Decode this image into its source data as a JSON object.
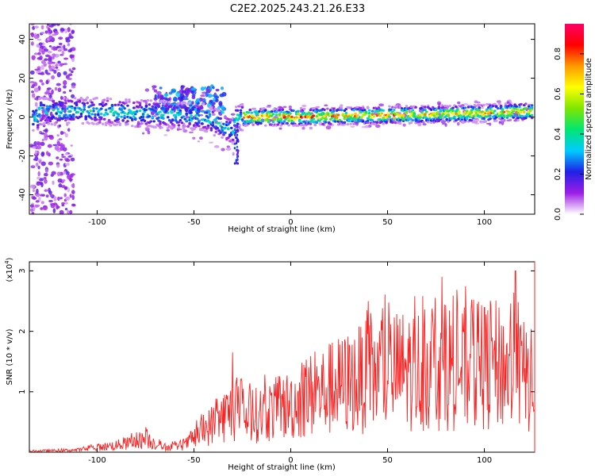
{
  "title": "C2E2.2025.243.21.26.E33",
  "chart_data": [
    {
      "type": "heatmap",
      "xlabel": "Height of straight line (km)",
      "ylabel": "Frequency (Hz)",
      "xlim": [
        -135,
        126
      ],
      "ylim": [
        -50,
        48
      ],
      "xticks": [
        -100,
        -50,
        0,
        50,
        100
      ],
      "yticks": [
        -40,
        -20,
        0,
        20,
        40
      ],
      "colorbar": {
        "label": "Normalized spectral amplitude",
        "range": [
          0,
          0.95
        ],
        "ticks": [
          "0.0",
          "0.2",
          "0.4",
          "0.6",
          "0.8"
        ],
        "colors": [
          "#ffffff",
          "#9e1ee6",
          "#2020e6",
          "#00ccff",
          "#00e673",
          "#7fe600",
          "#ffff00",
          "#ff9900",
          "#ff0000",
          "#ff0066"
        ]
      },
      "ridge": [
        {
          "x": -130,
          "freq": 3
        },
        {
          "x": -100,
          "freq": 3
        },
        {
          "x": -80,
          "freq": 2
        },
        {
          "x": -60,
          "freq": 1
        },
        {
          "x": -45,
          "freq": 0
        },
        {
          "x": -38,
          "freq": -3
        },
        {
          "x": -30,
          "freq": -8
        },
        {
          "x": -28,
          "freq": 0
        },
        {
          "x": 0,
          "freq": 0
        },
        {
          "x": 50,
          "freq": 1
        },
        {
          "x": 100,
          "freq": 2
        },
        {
          "x": 125,
          "freq": 3
        }
      ]
    },
    {
      "type": "line",
      "xlabel": "Height of straight line (km)",
      "ylabel": "SNR (10 * v/v)",
      "y_multiplier": "(x10",
      "y_multiplier_exp": "4",
      "y_multiplier_close": ")",
      "xlim": [
        -135,
        126
      ],
      "ylim": [
        0,
        3.15
      ],
      "xticks": [
        -100,
        -50,
        0,
        50,
        100
      ],
      "yticks": [
        1,
        2,
        3
      ],
      "series": [
        {
          "color": "#ff2020",
          "envelope": [
            {
              "x": -135,
              "y": 0.03
            },
            {
              "x": -110,
              "y": 0.06
            },
            {
              "x": -100,
              "y": 0.12
            },
            {
              "x": -85,
              "y": 0.22
            },
            {
              "x": -75,
              "y": 0.35
            },
            {
              "x": -65,
              "y": 0.12
            },
            {
              "x": -55,
              "y": 0.18
            },
            {
              "x": -48,
              "y": 0.45
            },
            {
              "x": -40,
              "y": 0.75
            },
            {
              "x": -32,
              "y": 1.05
            },
            {
              "x": -20,
              "y": 0.95
            },
            {
              "x": -10,
              "y": 1.1
            },
            {
              "x": 0,
              "y": 1.25
            },
            {
              "x": 10,
              "y": 1.5
            },
            {
              "x": 25,
              "y": 1.75
            },
            {
              "x": 40,
              "y": 2.0
            },
            {
              "x": 55,
              "y": 2.15
            },
            {
              "x": 70,
              "y": 2.2
            },
            {
              "x": 80,
              "y": 2.3
            },
            {
              "x": 90,
              "y": 2.2
            },
            {
              "x": 105,
              "y": 2.3
            },
            {
              "x": 115,
              "y": 2.2
            },
            {
              "x": 126,
              "y": 1.8
            }
          ],
          "peaks": [
            {
              "x": -30,
              "y": 1.65
            },
            {
              "x": 40,
              "y": 2.5
            },
            {
              "x": 78,
              "y": 2.9
            },
            {
              "x": 116,
              "y": 3.0
            }
          ]
        }
      ]
    }
  ]
}
